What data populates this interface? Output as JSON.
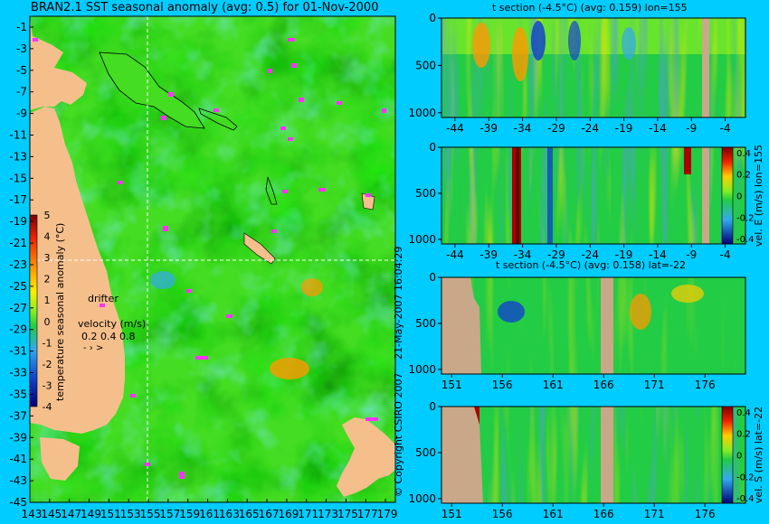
{
  "title": "BRAN2.1 SST seasonal anomaly (avg: 0.5) for 01-Nov-2000",
  "map": {
    "y_ticks": [
      "-1",
      "-3",
      "-5",
      "-7",
      "-9",
      "-11",
      "-13",
      "-15",
      "-17",
      "-19",
      "-21",
      "-23",
      "-25",
      "-27",
      "-29",
      "-31",
      "-33",
      "-35",
      "-37",
      "-39",
      "-41",
      "-43",
      "-45"
    ],
    "x_ticks": [
      "143",
      "145",
      "147",
      "149",
      "151",
      "153",
      "155",
      "157",
      "159",
      "161",
      "163",
      "165",
      "167",
      "169",
      "171",
      "173",
      "175",
      "177",
      "179"
    ],
    "colorbar_ticks": [
      "5",
      "4",
      "3",
      "2",
      "1",
      "0",
      "-1",
      "-2",
      "-3",
      "-4"
    ],
    "colorbar_label": "temperature seasonal anomaly (°C)",
    "drifter_label": "drifter",
    "velocity_label": "velocity (m/s)",
    "velocity_values": "0.2 0.4 0.8",
    "section_lon": 155,
    "section_lat": -22
  },
  "copyright": "© Copyright CSIRO 2007",
  "timestamp": "21-May-2007 16:04:29",
  "panels": [
    {
      "title": "t section (-4.5°C) (avg: 0.159) lon=155",
      "x_ticks": [
        "-44",
        "-39",
        "-34",
        "-29",
        "-24",
        "-19",
        "-14",
        "-9",
        "-4"
      ],
      "y_ticks": [
        "0",
        "500",
        "1000"
      ],
      "colorbar": null
    },
    {
      "title": "",
      "x_ticks": [
        "-44",
        "-39",
        "-34",
        "-29",
        "-24",
        "-19",
        "-14",
        "-9",
        "-4"
      ],
      "y_ticks": [
        "0",
        "500",
        "1000"
      ],
      "colorbar": {
        "label": "vel. E (m/s) lon=155",
        "ticks": [
          "0.4",
          "0.2",
          "0",
          "-0.2",
          "-0.4"
        ]
      }
    },
    {
      "title": "t section (-4.5°C) (avg: 0.158) lat=-22",
      "x_ticks": [
        "151",
        "156",
        "161",
        "166",
        "171",
        "176"
      ],
      "y_ticks": [
        "0",
        "500",
        "1000"
      ],
      "colorbar": null
    },
    {
      "title": "",
      "x_ticks": [
        "151",
        "156",
        "161",
        "166",
        "171",
        "176"
      ],
      "y_ticks": [
        "0",
        "500",
        "1000"
      ],
      "colorbar": {
        "label": "vel. S (m/s) lat=-22",
        "ticks": [
          "0.4",
          "0.2",
          "0",
          "-0.2",
          "-0.4"
        ]
      }
    }
  ],
  "chart_data": [
    {
      "type": "heatmap",
      "title": "BRAN2.1 SST seasonal anomaly (avg: 0.5) for 01-Nov-2000",
      "x_range": [
        143,
        180
      ],
      "y_range": [
        -45,
        0
      ],
      "value_range": [
        -4,
        5
      ],
      "value_mean": 0.5
    },
    {
      "type": "heatmap",
      "title": "t section (-4.5°C) (avg: 0.159) lon=155",
      "x_range": [
        -46,
        -1
      ],
      "depth_range": [
        0,
        1050
      ],
      "value_mean": 0.159
    },
    {
      "type": "heatmap",
      "x_range": [
        -46,
        -1
      ],
      "depth_range": [
        0,
        1050
      ],
      "value_range": [
        -0.4,
        0.4
      ],
      "colorbar_label": "vel. E (m/s) lon=155"
    },
    {
      "type": "heatmap",
      "title": "t section (-4.5°C) (avg: 0.158) lat=-22",
      "x_range": [
        150,
        180
      ],
      "depth_range": [
        0,
        1050
      ],
      "value_mean": 0.158
    },
    {
      "type": "heatmap",
      "x_range": [
        150,
        180
      ],
      "depth_range": [
        0,
        1050
      ],
      "value_range": [
        -0.4,
        0.4
      ],
      "colorbar_label": "vel. S (m/s) lat=-22"
    }
  ]
}
